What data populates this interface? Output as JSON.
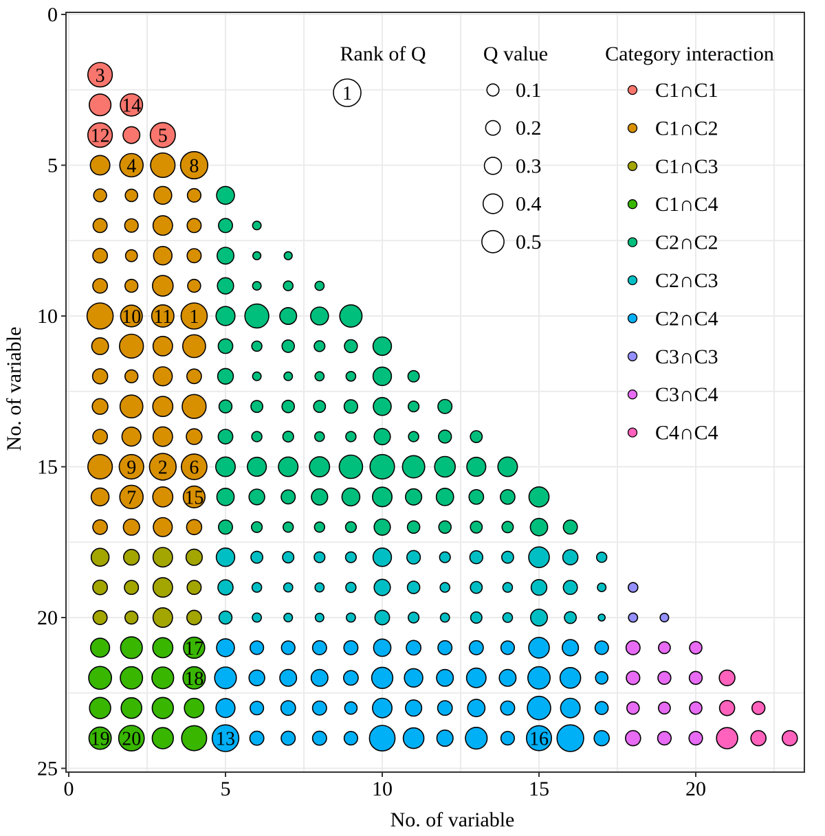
{
  "chart_data": {
    "type": "scatter",
    "xlabel": "No. of variable",
    "ylabel": "No. of variable",
    "xlim": [
      0,
      24
    ],
    "ylim": [
      25,
      0
    ],
    "y_reversed": true,
    "xticks": [
      0,
      5,
      10,
      15,
      20
    ],
    "yticks": [
      0,
      5,
      10,
      15,
      20,
      25
    ],
    "grid": true,
    "legend_placement": "top-right",
    "legend": {
      "rank_title": "Rank of Q",
      "rank_sample": "1",
      "size_title": "Q value",
      "size_entries": [
        {
          "label": "0.1",
          "q": 0.1
        },
        {
          "label": "0.2",
          "q": 0.2
        },
        {
          "label": "0.3",
          "q": 0.3
        },
        {
          "label": "0.4",
          "q": 0.4
        },
        {
          "label": "0.5",
          "q": 0.5
        }
      ],
      "category_title": "Category interaction",
      "categories": [
        {
          "label": "C1∩C1",
          "color": "#f8766d"
        },
        {
          "label": "C1∩C2",
          "color": "#d89000"
        },
        {
          "label": "C1∩C3",
          "color": "#a3a500"
        },
        {
          "label": "C1∩C4",
          "color": "#39b600"
        },
        {
          "label": "C2∩C2",
          "color": "#00bf7d"
        },
        {
          "label": "C2∩C3",
          "color": "#00bfc4"
        },
        {
          "label": "C2∩C4",
          "color": "#00b0f6"
        },
        {
          "label": "C3∩C3",
          "color": "#9590ff"
        },
        {
          "label": "C3∩C4",
          "color": "#e76bf3"
        },
        {
          "label": "C4∩C4",
          "color": "#ff62bc"
        }
      ]
    },
    "rows": [
      {
        "y": 2,
        "q": [
          0.34
        ]
      },
      {
        "y": 3,
        "q": [
          0.29,
          0.3
        ]
      },
      {
        "y": 4,
        "q": [
          0.34,
          0.2,
          0.35
        ]
      },
      {
        "y": 5,
        "q": [
          0.25,
          0.32,
          0.34,
          0.39
        ]
      },
      {
        "y": 6,
        "q": [
          0.13,
          0.12,
          0.22,
          0.14,
          0.22
        ]
      },
      {
        "y": 7,
        "q": [
          0.15,
          0.14,
          0.25,
          0.15,
          0.15,
          0.05
        ]
      },
      {
        "y": 8,
        "q": [
          0.16,
          0.11,
          0.23,
          0.15,
          0.2,
          0.04,
          0.04
        ]
      },
      {
        "y": 9,
        "q": [
          0.16,
          0.13,
          0.27,
          0.13,
          0.19,
          0.05,
          0.07,
          0.06
        ]
      },
      {
        "y": 10,
        "q": [
          0.37,
          0.29,
          0.3,
          0.37,
          0.24,
          0.33,
          0.2,
          0.22,
          0.3
        ]
      },
      {
        "y": 11,
        "q": [
          0.2,
          0.33,
          0.25,
          0.31,
          0.16,
          0.08,
          0.12,
          0.09,
          0.13,
          0.23
        ]
      },
      {
        "y": 12,
        "q": [
          0.17,
          0.13,
          0.24,
          0.16,
          0.18,
          0.05,
          0.05,
          0.06,
          0.07,
          0.23,
          0.1
        ]
      },
      {
        "y": 13,
        "q": [
          0.18,
          0.31,
          0.26,
          0.33,
          0.13,
          0.11,
          0.12,
          0.11,
          0.14,
          0.22,
          0.09,
          0.15
        ]
      },
      {
        "y": 14,
        "q": [
          0.16,
          0.24,
          0.25,
          0.18,
          0.16,
          0.08,
          0.09,
          0.07,
          0.08,
          0.19,
          0.08,
          0.13,
          0.11
        ]
      },
      {
        "y": 15,
        "q": [
          0.34,
          0.34,
          0.38,
          0.36,
          0.25,
          0.24,
          0.25,
          0.26,
          0.32,
          0.34,
          0.3,
          0.27,
          0.24,
          0.25
        ]
      },
      {
        "y": 16,
        "q": [
          0.22,
          0.32,
          0.26,
          0.29,
          0.21,
          0.18,
          0.15,
          0.19,
          0.22,
          0.25,
          0.19,
          0.21,
          0.16,
          0.16,
          0.26
        ]
      },
      {
        "y": 17,
        "q": [
          0.16,
          0.19,
          0.24,
          0.17,
          0.15,
          0.09,
          0.08,
          0.08,
          0.09,
          0.19,
          0.12,
          0.12,
          0.11,
          0.1,
          0.21,
          0.15
        ]
      },
      {
        "y": 18,
        "q": [
          0.22,
          0.18,
          0.25,
          0.19,
          0.23,
          0.11,
          0.1,
          0.09,
          0.09,
          0.23,
          0.14,
          0.09,
          0.13,
          0.11,
          0.27,
          0.17,
          0.08
        ]
      },
      {
        "y": 19,
        "q": [
          0.16,
          0.15,
          0.25,
          0.15,
          0.17,
          0.07,
          0.06,
          0.06,
          0.08,
          0.19,
          0.12,
          0.07,
          0.11,
          0.07,
          0.18,
          0.15,
          0.05,
          0.07
        ]
      },
      {
        "y": 20,
        "q": [
          0.15,
          0.13,
          0.25,
          0.16,
          0.13,
          0.06,
          0.05,
          0.05,
          0.06,
          0.16,
          0.09,
          0.06,
          0.1,
          0.07,
          0.2,
          0.11,
          0.02,
          0.06,
          0.05
        ]
      },
      {
        "y": 21,
        "q": [
          0.24,
          0.29,
          0.26,
          0.28,
          0.22,
          0.14,
          0.14,
          0.15,
          0.15,
          0.21,
          0.16,
          0.15,
          0.15,
          0.14,
          0.27,
          0.19,
          0.14,
          0.15,
          0.11,
          0.12
        ]
      },
      {
        "y": 22,
        "q": [
          0.31,
          0.3,
          0.29,
          0.3,
          0.29,
          0.18,
          0.2,
          0.2,
          0.16,
          0.28,
          0.23,
          0.2,
          0.25,
          0.2,
          0.3,
          0.27,
          0.12,
          0.14,
          0.13,
          0.13,
          0.18
        ]
      },
      {
        "y": 23,
        "q": [
          0.28,
          0.27,
          0.28,
          0.25,
          0.24,
          0.14,
          0.16,
          0.15,
          0.12,
          0.25,
          0.19,
          0.16,
          0.21,
          0.15,
          0.32,
          0.25,
          0.13,
          0.12,
          0.11,
          0.12,
          0.17,
          0.13
        ]
      },
      {
        "y": 24,
        "q": [
          0.3,
          0.36,
          0.28,
          0.35,
          0.38,
          0.15,
          0.15,
          0.15,
          0.14,
          0.36,
          0.27,
          0.19,
          0.29,
          0.14,
          0.35,
          0.38,
          0.17,
          0.17,
          0.14,
          0.14,
          0.28,
          0.17,
          0.17
        ]
      }
    ],
    "ranks": [
      {
        "x": 4,
        "y": 10,
        "rank": "1"
      },
      {
        "x": 3,
        "y": 15,
        "rank": "2"
      },
      {
        "x": 1,
        "y": 2,
        "rank": "3"
      },
      {
        "x": 2,
        "y": 5,
        "rank": "4"
      },
      {
        "x": 3,
        "y": 4,
        "rank": "5"
      },
      {
        "x": 4,
        "y": 15,
        "rank": "6"
      },
      {
        "x": 2,
        "y": 16,
        "rank": "7"
      },
      {
        "x": 4,
        "y": 5,
        "rank": "8"
      },
      {
        "x": 2,
        "y": 15,
        "rank": "9"
      },
      {
        "x": 2,
        "y": 10,
        "rank": "10"
      },
      {
        "x": 3,
        "y": 10,
        "rank": "11"
      },
      {
        "x": 1,
        "y": 4,
        "rank": "12"
      },
      {
        "x": 5,
        "y": 24,
        "rank": "13"
      },
      {
        "x": 2,
        "y": 3,
        "rank": "14"
      },
      {
        "x": 4,
        "y": 16,
        "rank": "15"
      },
      {
        "x": 15,
        "y": 24,
        "rank": "16"
      },
      {
        "x": 4,
        "y": 21,
        "rank": "17"
      },
      {
        "x": 4,
        "y": 22,
        "rank": "18"
      },
      {
        "x": 1,
        "y": 24,
        "rank": "19"
      },
      {
        "x": 2,
        "y": 24,
        "rank": "20"
      }
    ]
  }
}
